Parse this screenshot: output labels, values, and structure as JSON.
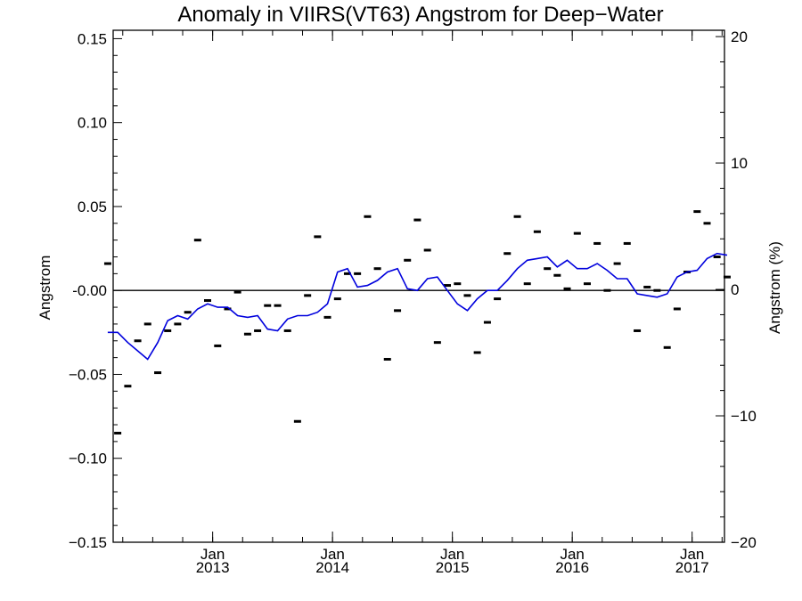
{
  "chart_data": {
    "type": "scatter",
    "title": "Anomaly in VIIRS(VT63) Angstrom for Deep−Water",
    "xlabel": "",
    "ylabel": "Angstrom",
    "ylabel_right": "Angstrom (%)",
    "xlim": [
      2012.17,
      2017.27
    ],
    "ylim": [
      -0.15,
      0.155
    ],
    "ylim_right": [
      -20,
      20.5
    ],
    "grid": false,
    "legend": "none",
    "x_ticks": [
      {
        "value": 2013.0,
        "month": "Jan",
        "year": "2013"
      },
      {
        "value": 2014.0,
        "month": "Jan",
        "year": "2014"
      },
      {
        "value": 2015.0,
        "month": "Jan",
        "year": "2015"
      },
      {
        "value": 2016.0,
        "month": "Jan",
        "year": "2016"
      },
      {
        "value": 2017.0,
        "month": "Jan",
        "year": "2017"
      }
    ],
    "y_ticks": [
      "0.15",
      "0.10",
      "0.05",
      "-0.00",
      "−0.05",
      "−0.10",
      "−0.15"
    ],
    "y_tick_values": [
      0.15,
      0.1,
      0.05,
      0.0,
      -0.05,
      -0.1,
      -0.15
    ],
    "y_right_ticks": [
      "20",
      "10",
      "0",
      "−10",
      "−20"
    ],
    "y_right_tick_values": [
      20,
      10,
      0,
      -10,
      -20
    ],
    "reference_line": 0.0,
    "colors": {
      "line": "#0000dd",
      "points": "#000000",
      "axes": "#000000"
    },
    "series": [
      {
        "kind": "points",
        "x": [
          2012.125,
          2012.208,
          2012.292,
          2012.375,
          2012.458,
          2012.542,
          2012.625,
          2012.708,
          2012.792,
          2012.875,
          2012.958,
          2013.042,
          2013.125,
          2013.208,
          2013.292,
          2013.375,
          2013.458,
          2013.542,
          2013.625,
          2013.708,
          2013.792,
          2013.875,
          2013.958,
          2014.042,
          2014.125,
          2014.208,
          2014.292,
          2014.375,
          2014.458,
          2014.542,
          2014.625,
          2014.708,
          2014.792,
          2014.875,
          2014.958,
          2015.042,
          2015.125,
          2015.208,
          2015.292,
          2015.375,
          2015.458,
          2015.542,
          2015.625,
          2015.708,
          2015.792,
          2015.875,
          2015.958,
          2016.042,
          2016.125,
          2016.208,
          2016.292,
          2016.375,
          2016.458,
          2016.542,
          2016.625,
          2016.708,
          2016.792,
          2016.875,
          2016.958,
          2017.042,
          2017.125,
          2017.208,
          2017.292
        ],
        "values": [
          0.016,
          -0.085,
          -0.057,
          -0.03,
          -0.02,
          -0.049,
          -0.024,
          -0.02,
          -0.013,
          0.03,
          -0.006,
          -0.033,
          -0.011,
          -0.001,
          -0.026,
          -0.024,
          -0.009,
          -0.009,
          -0.024,
          -0.078,
          -0.003,
          0.032,
          -0.016,
          -0.005,
          0.01,
          0.01,
          0.044,
          0.013,
          -0.041,
          -0.012,
          0.018,
          0.042,
          0.024,
          -0.031,
          0.003,
          0.004,
          -0.003,
          -0.037,
          -0.019,
          -0.005,
          0.022,
          0.044,
          0.004,
          0.035,
          0.013,
          0.009,
          0.001,
          0.034,
          0.004,
          0.028,
          0.0,
          0.016,
          0.028,
          -0.024,
          0.002,
          0.0,
          -0.034,
          -0.011,
          0.011,
          0.047,
          0.04,
          0.02,
          0.008
        ]
      },
      {
        "kind": "line",
        "x": [
          2012.125,
          2012.208,
          2012.292,
          2012.375,
          2012.458,
          2012.542,
          2012.625,
          2012.708,
          2012.792,
          2012.875,
          2012.958,
          2013.042,
          2013.125,
          2013.208,
          2013.292,
          2013.375,
          2013.458,
          2013.542,
          2013.625,
          2013.708,
          2013.792,
          2013.875,
          2013.958,
          2014.042,
          2014.125,
          2014.208,
          2014.292,
          2014.375,
          2014.458,
          2014.542,
          2014.625,
          2014.708,
          2014.792,
          2014.875,
          2014.958,
          2015.042,
          2015.125,
          2015.208,
          2015.292,
          2015.375,
          2015.458,
          2015.542,
          2015.625,
          2015.708,
          2015.792,
          2015.875,
          2015.958,
          2016.042,
          2016.125,
          2016.208,
          2016.292,
          2016.375,
          2016.458,
          2016.542,
          2016.625,
          2016.708,
          2016.792,
          2016.875,
          2016.958,
          2017.042,
          2017.125,
          2017.208,
          2017.292
        ],
        "values": [
          -0.025,
          -0.025,
          -0.031,
          -0.036,
          -0.041,
          -0.031,
          -0.018,
          -0.015,
          -0.017,
          -0.011,
          -0.008,
          -0.01,
          -0.01,
          -0.015,
          -0.016,
          -0.015,
          -0.023,
          -0.024,
          -0.017,
          -0.015,
          -0.015,
          -0.013,
          -0.008,
          0.011,
          0.013,
          0.002,
          0.003,
          0.006,
          0.011,
          0.013,
          0.001,
          0.0,
          0.007,
          0.008,
          0.0,
          -0.008,
          -0.012,
          -0.005,
          0.0,
          0.0,
          0.006,
          0.013,
          0.018,
          0.019,
          0.02,
          0.014,
          0.018,
          0.013,
          0.013,
          0.016,
          0.012,
          0.007,
          0.007,
          -0.002,
          -0.003,
          -0.004,
          -0.002,
          0.008,
          0.011,
          0.012,
          0.019,
          0.022,
          0.021
        ]
      }
    ]
  }
}
